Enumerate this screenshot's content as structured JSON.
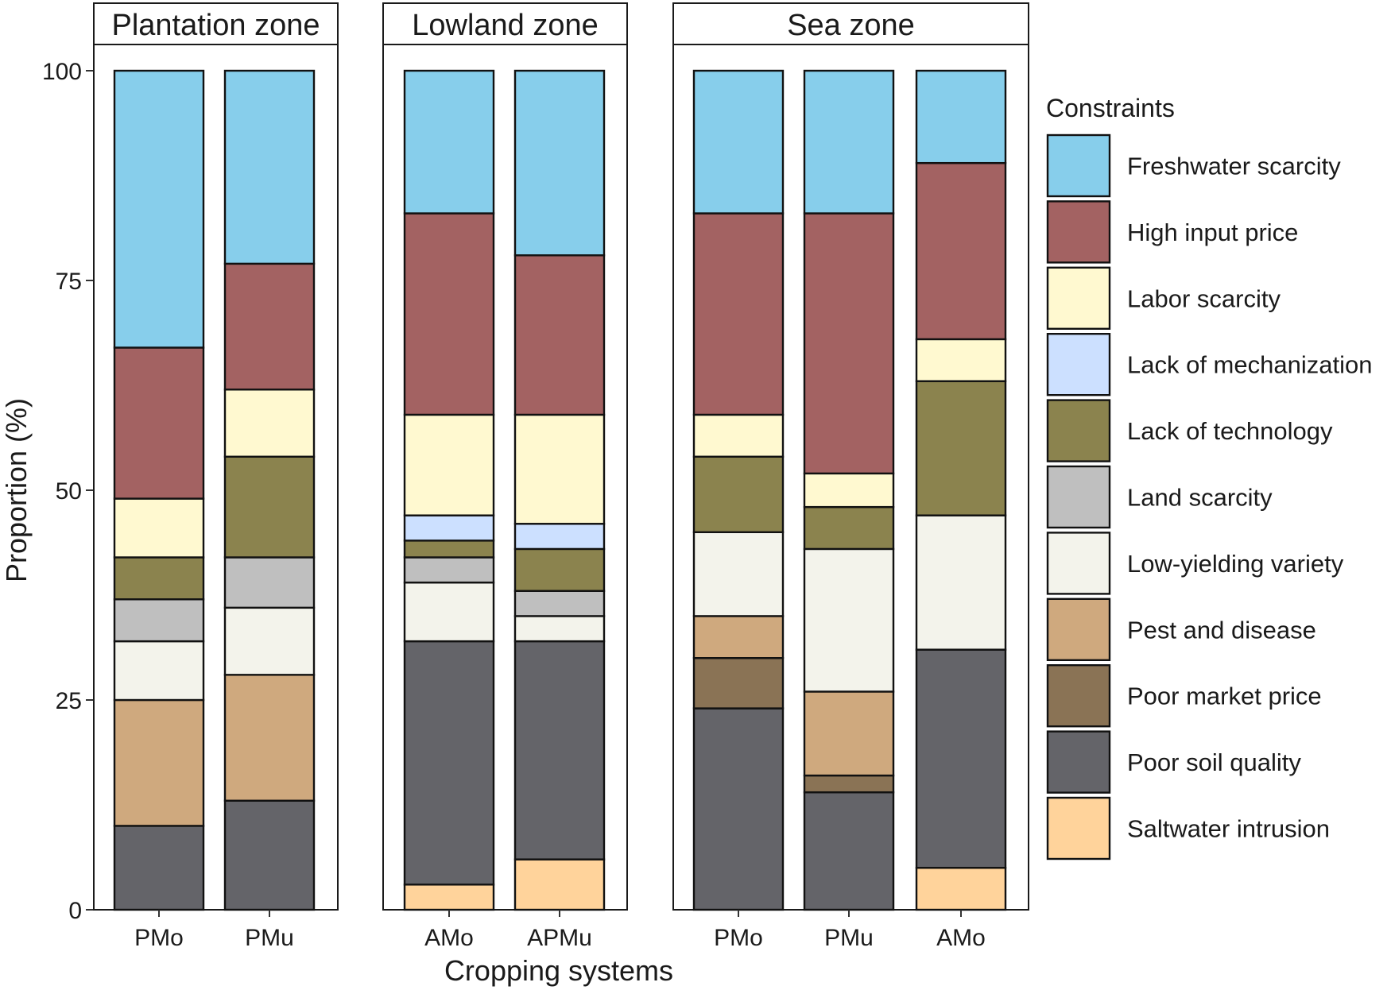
{
  "chart_data": {
    "type": "bar",
    "stacked": true,
    "xlabel": "Cropping systems",
    "ylabel": "Proportion (%)",
    "ylim": [
      0,
      100
    ],
    "yticks": [
      0,
      25,
      50,
      75,
      100
    ],
    "grid": false,
    "legend": {
      "title": "Constraints",
      "placement": "right"
    },
    "series": [
      {
        "name": "Freshwater scarcity",
        "color": "#87CEEB"
      },
      {
        "name": "High input price",
        "color": "#A36262"
      },
      {
        "name": "Labor scarcity",
        "color": "#FFF9D0"
      },
      {
        "name": "Lack of mechanization",
        "color": "#CCE0FF"
      },
      {
        "name": "Lack of technology",
        "color": "#8B834E"
      },
      {
        "name": "Land scarcity",
        "color": "#BFBFBF"
      },
      {
        "name": "Low-yielding variety",
        "color": "#F3F3EB"
      },
      {
        "name": "Pest and disease",
        "color": "#CFA97E"
      },
      {
        "name": "Poor market price",
        "color": "#8A7355"
      },
      {
        "name": "Poor soil quality",
        "color": "#646469"
      },
      {
        "name": "Saltwater intrusion",
        "color": "#FFD39B"
      }
    ],
    "panels": [
      {
        "title": "Plantation zone",
        "categories": [
          "PMo",
          "PMu"
        ],
        "values": {
          "Freshwater scarcity": [
            33,
            23
          ],
          "High input price": [
            18,
            15
          ],
          "Labor scarcity": [
            7,
            8
          ],
          "Lack of mechanization": [
            0,
            0
          ],
          "Lack of technology": [
            5,
            12
          ],
          "Land scarcity": [
            5,
            6
          ],
          "Low-yielding variety": [
            7,
            8
          ],
          "Pest and disease": [
            15,
            15
          ],
          "Poor market price": [
            0,
            0
          ],
          "Poor soil quality": [
            10,
            13
          ],
          "Saltwater intrusion": [
            0,
            0
          ]
        }
      },
      {
        "title": "Lowland zone",
        "categories": [
          "AMo",
          "APMu"
        ],
        "values": {
          "Freshwater scarcity": [
            17,
            22
          ],
          "High input price": [
            24,
            19
          ],
          "Labor scarcity": [
            12,
            13
          ],
          "Lack of mechanization": [
            3,
            3
          ],
          "Lack of technology": [
            2,
            5
          ],
          "Land scarcity": [
            3,
            3
          ],
          "Low-yielding variety": [
            7,
            3
          ],
          "Pest and disease": [
            0,
            0
          ],
          "Poor market price": [
            0,
            0
          ],
          "Poor soil quality": [
            29,
            26
          ],
          "Saltwater intrusion": [
            3,
            6
          ]
        }
      },
      {
        "title": "Sea zone",
        "categories": [
          "PMo",
          "PMu",
          "AMo"
        ],
        "values": {
          "Freshwater scarcity": [
            17,
            17,
            11
          ],
          "High input price": [
            24,
            31,
            21
          ],
          "Labor scarcity": [
            5,
            4,
            5
          ],
          "Lack of mechanization": [
            0,
            0,
            0
          ],
          "Lack of technology": [
            9,
            5,
            16
          ],
          "Land scarcity": [
            0,
            0,
            0
          ],
          "Low-yielding variety": [
            10,
            17,
            16
          ],
          "Pest and disease": [
            5,
            10,
            0
          ],
          "Poor market price": [
            6,
            2,
            0
          ],
          "Poor soil quality": [
            24,
            14,
            26
          ],
          "Saltwater intrusion": [
            0,
            0,
            5
          ]
        }
      }
    ]
  }
}
